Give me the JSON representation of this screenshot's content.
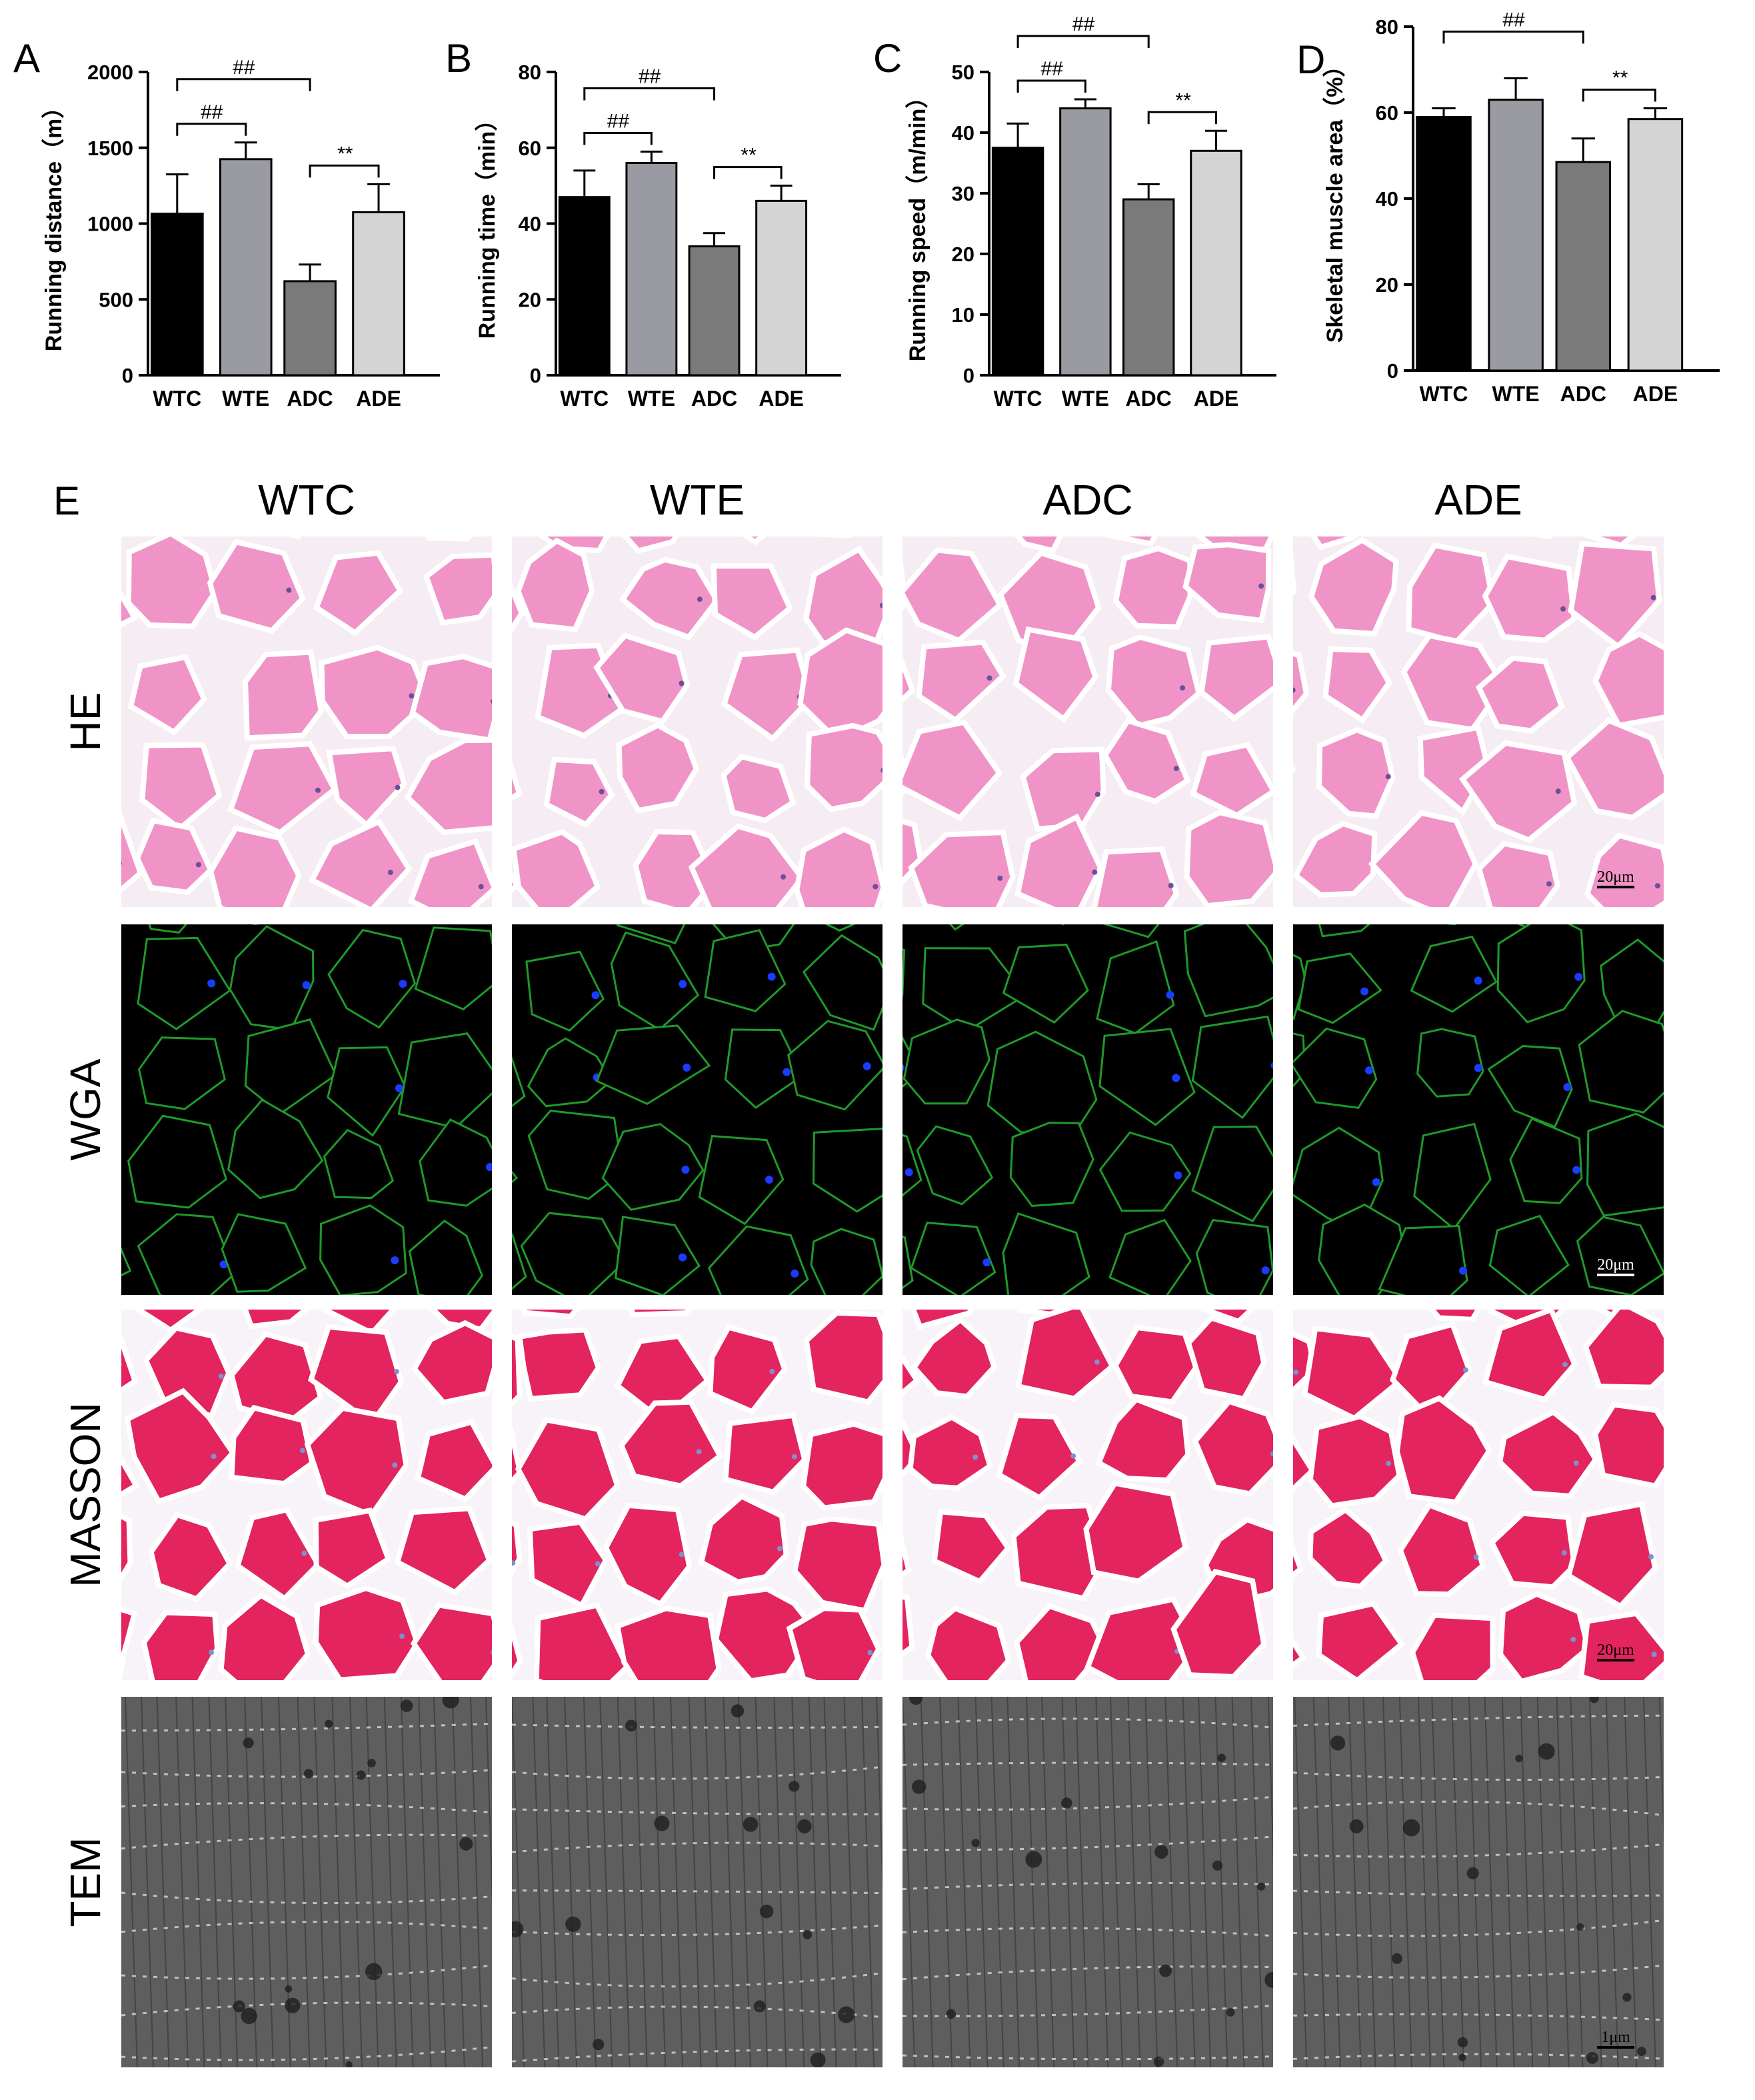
{
  "chart_data": [
    {
      "panel": "A",
      "type": "bar",
      "categories": [
        "WTC",
        "WTE",
        "ADC",
        "ADE"
      ],
      "values": [
        1065,
        1425,
        620,
        1075
      ],
      "errors": [
        260,
        110,
        110,
        185
      ],
      "ylabel": "Running distance（m）",
      "ylim": [
        0,
        2000
      ],
      "yticks": [
        "0",
        "500",
        "1000",
        "1500",
        "2000"
      ],
      "bar_colors": [
        "#000000",
        "#9a9aa3",
        "#7a7a7a",
        "#d4d4d4"
      ],
      "significance": [
        {
          "from": 0,
          "to": 2,
          "label": "##"
        },
        {
          "from": 0,
          "to": 1,
          "label": "##"
        },
        {
          "from": 2,
          "to": 3,
          "label": "**"
        }
      ]
    },
    {
      "panel": "B",
      "type": "bar",
      "categories": [
        "WTC",
        "WTE",
        "ADC",
        "ADE"
      ],
      "values": [
        47,
        56,
        34,
        46
      ],
      "errors": [
        7,
        3,
        3.5,
        4
      ],
      "ylabel": "Running time（min）",
      "ylim": [
        0,
        80
      ],
      "yticks": [
        "0",
        "20",
        "40",
        "60",
        "80"
      ],
      "bar_colors": [
        "#000000",
        "#9a9aa3",
        "#7a7a7a",
        "#d4d4d4"
      ],
      "significance": [
        {
          "from": 0,
          "to": 2,
          "label": "##"
        },
        {
          "from": 0,
          "to": 1,
          "label": "##"
        },
        {
          "from": 2,
          "to": 3,
          "label": "**"
        }
      ]
    },
    {
      "panel": "C",
      "type": "bar",
      "categories": [
        "WTC",
        "WTE",
        "ADC",
        "ADE"
      ],
      "values": [
        37.5,
        44,
        29,
        37
      ],
      "errors": [
        4,
        1.5,
        2.5,
        3.3
      ],
      "ylabel": "Running speed（m/min）",
      "ylim": [
        0,
        50
      ],
      "yticks": [
        "0",
        "10",
        "20",
        "30",
        "40",
        "50"
      ],
      "bar_colors": [
        "#000000",
        "#9a9aa3",
        "#7a7a7a",
        "#d4d4d4"
      ],
      "significance": [
        {
          "from": 0,
          "to": 2,
          "label": "##"
        },
        {
          "from": 0,
          "to": 1,
          "label": "##"
        },
        {
          "from": 2,
          "to": 3,
          "label": "**"
        }
      ]
    },
    {
      "panel": "D",
      "type": "bar",
      "categories": [
        "WTC",
        "WTE",
        "ADC",
        "ADE"
      ],
      "values": [
        59,
        63,
        48.5,
        58.5
      ],
      "errors": [
        2,
        5,
        5.5,
        2.5
      ],
      "ylabel": "Skeletal muscle area（%）",
      "ylim": [
        0,
        80
      ],
      "yticks": [
        "0",
        "20",
        "40",
        "60",
        "80"
      ],
      "bar_colors": [
        "#000000",
        "#9a9aa3",
        "#7a7a7a",
        "#d4d4d4"
      ],
      "significance": [
        {
          "from": 0,
          "to": 2,
          "label": "##"
        },
        {
          "from": 2,
          "to": 3,
          "label": "**"
        }
      ]
    }
  ],
  "image_grid": {
    "panel": "E",
    "columns": [
      "WTC",
      "WTE",
      "ADC",
      "ADE"
    ],
    "rows": [
      {
        "label": "HE",
        "scale": "20μm",
        "bg": "#f6ecf4",
        "fiber": "#f094c8",
        "line": "#ffffff",
        "dot": "#6a4f9a"
      },
      {
        "label": "WGA",
        "scale": "20μm",
        "bg": "#000000",
        "fiber": "#000000",
        "line": "#1f9a2a",
        "dot": "#1a3cff"
      },
      {
        "label": "MASSON",
        "scale": "20μm",
        "bg": "#f7f3f8",
        "fiber": "#e3245e",
        "line": "#ffffff",
        "dot": "#7f8fd0"
      },
      {
        "label": "TEM",
        "scale": "1μm",
        "bg": "#5e5e5e",
        "fiber": "#4a4a4a",
        "line": "#d8d8d8",
        "dot": "#1e1e1e"
      }
    ]
  }
}
